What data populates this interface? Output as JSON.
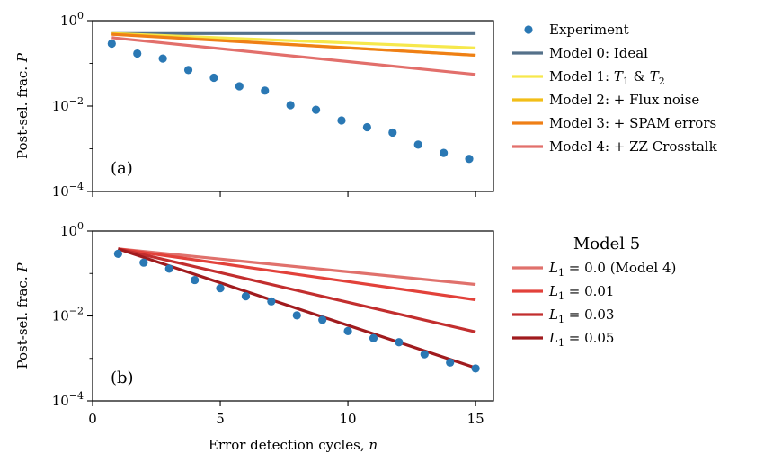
{
  "chart_data": {
    "type": "line",
    "xlabel": "Error detection cycles, n",
    "x_ticks": [
      "0",
      "5",
      "10",
      "15"
    ],
    "x_tick_values": [
      0,
      5,
      10,
      15
    ],
    "xlim": [
      0,
      15.7
    ],
    "y_scale": "log",
    "panels": [
      {
        "tag": "(a)",
        "ylabel": "Post-sel. frac. P",
        "ylim": [
          0.0001,
          1
        ],
        "y_ticks": [
          {
            "value": 1,
            "base": "10",
            "exp": "0"
          },
          {
            "value": 0.01,
            "base": "10",
            "exp": "−2"
          },
          {
            "value": 0.0001,
            "base": "10",
            "exp": "−4"
          }
        ],
        "experiment": {
          "name": "Experiment",
          "color": "#2a78b4",
          "x": [
            0.75,
            1.75,
            2.75,
            3.75,
            4.75,
            5.75,
            6.75,
            7.75,
            8.75,
            9.75,
            10.75,
            11.75,
            12.75,
            13.75,
            14.75
          ],
          "y": [
            0.29,
            0.17,
            0.13,
            0.07,
            0.046,
            0.029,
            0.023,
            0.0105,
            0.0082,
            0.0046,
            0.0032,
            0.0024,
            0.00125,
            0.0008,
            0.00058
          ]
        },
        "series": [
          {
            "name": "Model 0: Ideal",
            "color": "#55718a",
            "x": [
              0.75,
              15
            ],
            "y": [
              0.5,
              0.5
            ]
          },
          {
            "name": "Model 1: T1 & T2",
            "color": "#f6e84c",
            "x": [
              0.75,
              15
            ],
            "y": [
              0.5,
              0.23
            ]
          },
          {
            "name": "Model 2: + Flux noise",
            "color": "#f2be18",
            "x": [
              0.75,
              15
            ],
            "y": [
              0.49,
              0.155
            ]
          },
          {
            "name": "Model 3: + SPAM errors",
            "color": "#ef7f16",
            "x": [
              0.75,
              15
            ],
            "y": [
              0.48,
              0.155
            ]
          },
          {
            "name": "Model 4: + ZZ Crosstalk",
            "color": "#e26f6b",
            "x": [
              0.75,
              15
            ],
            "y": [
              0.4,
              0.055
            ]
          }
        ]
      },
      {
        "tag": "(b)",
        "ylabel": "Post-sel. frac. P",
        "ylim": [
          0.0001,
          1
        ],
        "y_ticks": [
          {
            "value": 1,
            "base": "10",
            "exp": "0"
          },
          {
            "value": 0.01,
            "base": "10",
            "exp": "−2"
          },
          {
            "value": 0.0001,
            "base": "10",
            "exp": "−4"
          }
        ],
        "legend_title": "Model 5",
        "experiment": {
          "color": "#2a78b4",
          "x": [
            1,
            2,
            3,
            4,
            5,
            6,
            7,
            8,
            9,
            10,
            11,
            12,
            13,
            14,
            15
          ],
          "y": [
            0.29,
            0.18,
            0.13,
            0.07,
            0.045,
            0.029,
            0.022,
            0.0103,
            0.0081,
            0.0044,
            0.003,
            0.0024,
            0.00125,
            0.0008,
            0.00058
          ]
        },
        "series": [
          {
            "name": "L1 = 0.0 (Model 4)",
            "color": "#e0716c",
            "x": [
              1,
              15
            ],
            "y": [
              0.38,
              0.055
            ]
          },
          {
            "name": "L1 = 0.01",
            "color": "#e2413a",
            "x": [
              1,
              15
            ],
            "y": [
              0.38,
              0.024
            ]
          },
          {
            "name": "L1 = 0.03",
            "color": "#c22e2e",
            "x": [
              1,
              15
            ],
            "y": [
              0.38,
              0.0042
            ]
          },
          {
            "name": "L1 = 0.05",
            "color": "#a01b1e",
            "x": [
              1,
              15
            ],
            "y": [
              0.38,
              0.0006
            ]
          }
        ]
      }
    ],
    "legend_a": {
      "placement": "right",
      "entries": [
        {
          "label": "Experiment",
          "kind": "marker",
          "color": "#2a78b4"
        },
        {
          "label_pre": "Model 0: Ideal",
          "kind": "line",
          "color": "#55718a"
        },
        {
          "label_pre": "Model 1: ",
          "sym1": "T",
          "sub1": "1",
          "mid": " & ",
          "sym2": "T",
          "sub2": "2",
          "kind": "line",
          "color": "#f6e84c"
        },
        {
          "label_pre": "Model 2: + Flux noise",
          "kind": "line",
          "color": "#f2be18"
        },
        {
          "label_pre": "Model 3: + SPAM errors",
          "kind": "line",
          "color": "#ef7f16"
        },
        {
          "label_pre": "Model 4: + ZZ Crosstalk",
          "kind": "line",
          "color": "#e26f6b"
        }
      ]
    },
    "legend_b": {
      "placement": "right",
      "entries": [
        {
          "sym": "L",
          "sub": "1",
          "rest": " = 0.0 (Model 4)",
          "color": "#e0716c"
        },
        {
          "sym": "L",
          "sub": "1",
          "rest": " = 0.01",
          "color": "#e2413a"
        },
        {
          "sym": "L",
          "sub": "1",
          "rest": " = 0.03",
          "color": "#c22e2e"
        },
        {
          "sym": "L",
          "sub": "1",
          "rest": " = 0.05",
          "color": "#a01b1e"
        }
      ]
    }
  }
}
